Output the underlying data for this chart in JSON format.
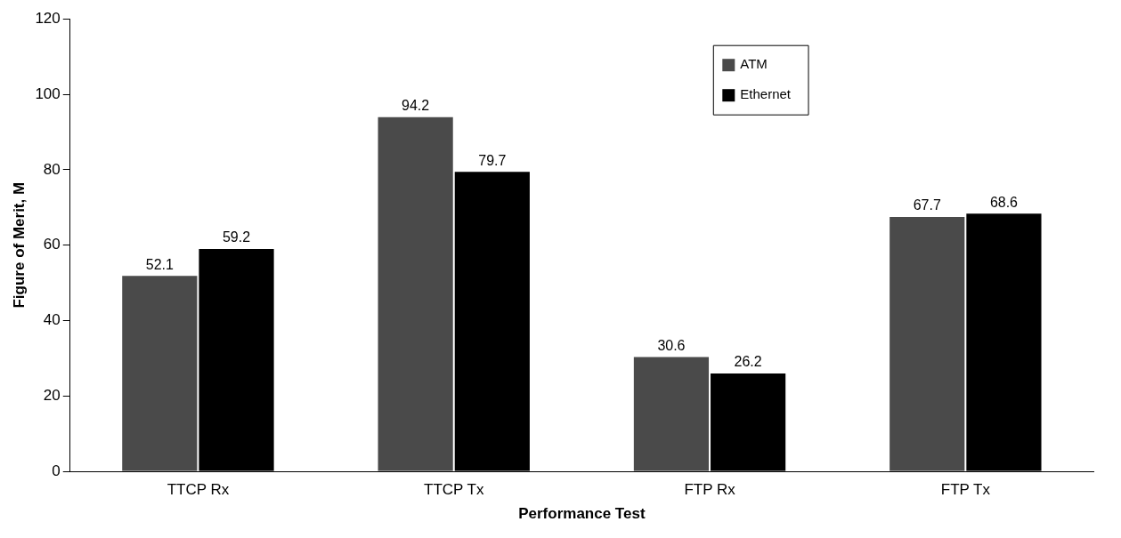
{
  "chart_data": {
    "type": "bar",
    "xlabel": "Performance Test",
    "ylabel": "Figure of Merit, M",
    "categories": [
      "TTCP Rx",
      "TTCP Tx",
      "FTP Rx",
      "FTP Tx"
    ],
    "series": [
      {
        "name": "ATM",
        "color": "#4a4a4a",
        "values": [
          52.1,
          94.2,
          30.6,
          67.7
        ]
      },
      {
        "name": "Ethernet",
        "color": "#000000",
        "values": [
          59.2,
          79.7,
          26.2,
          68.6
        ]
      }
    ],
    "ylim": [
      0,
      120
    ],
    "yticks": [
      0,
      20,
      40,
      60,
      80,
      100,
      120
    ],
    "grid": false,
    "legend": "top right",
    "data_labels": true
  }
}
